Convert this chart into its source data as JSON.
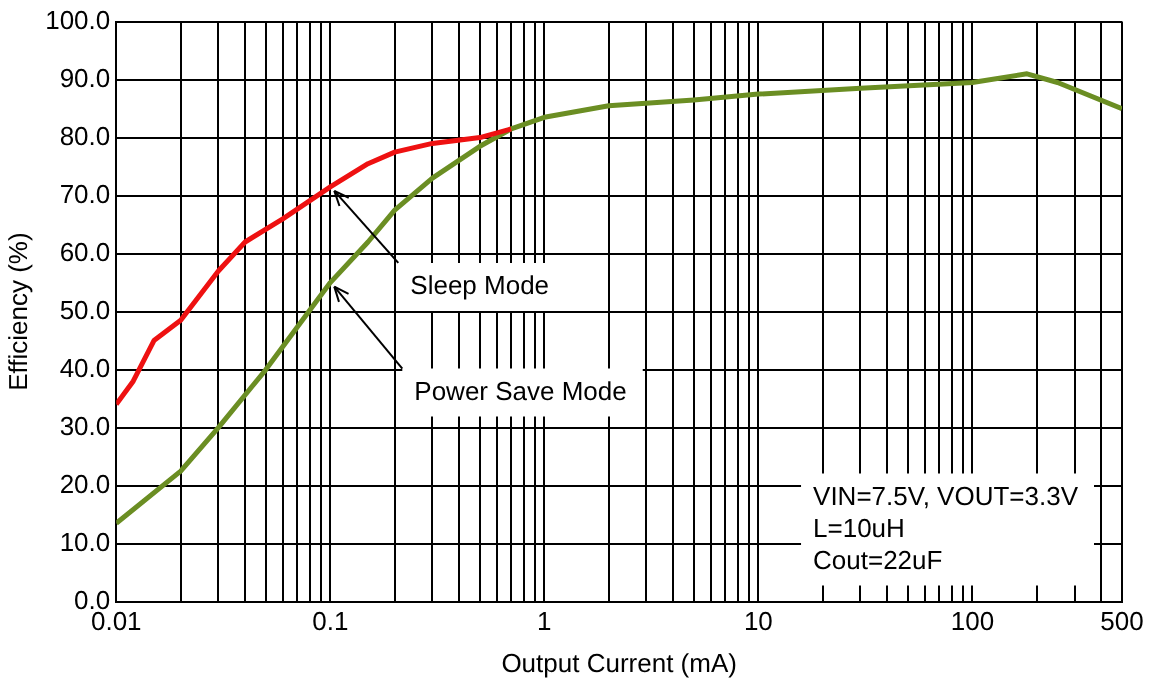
{
  "chart_data": {
    "type": "line",
    "xlabel": "Output Current (mA)",
    "ylabel": "Efficiency (%)",
    "log": "x",
    "grid": true,
    "legend": false,
    "marker": "none",
    "line_style": "solid",
    "xlim": [
      0.01,
      500
    ],
    "ylim": [
      0,
      100
    ],
    "xticks": [
      0.01,
      {
        "value": 0.02,
        "label": null
      },
      {
        "value": 0.03,
        "label": null
      },
      {
        "value": 0.04,
        "label": null
      },
      {
        "value": 0.05,
        "label": null
      },
      {
        "value": 0.06,
        "label": null
      },
      {
        "value": 0.07,
        "label": null
      },
      {
        "value": 0.08,
        "label": null
      },
      {
        "value": 0.09,
        "label": null
      },
      0.1,
      {
        "value": 0.2,
        "label": null
      },
      {
        "value": 0.3,
        "label": null
      },
      {
        "value": 0.4,
        "label": null
      },
      {
        "value": 0.5,
        "label": null
      },
      {
        "value": 0.6,
        "label": null
      },
      {
        "value": 0.7,
        "label": null
      },
      {
        "value": 0.8,
        "label": null
      },
      {
        "value": 0.9,
        "label": null
      },
      1,
      {
        "value": 2,
        "label": null
      },
      {
        "value": 3,
        "label": null
      },
      {
        "value": 4,
        "label": null
      },
      {
        "value": 5,
        "label": null
      },
      {
        "value": 6,
        "label": null
      },
      {
        "value": 7,
        "label": null
      },
      {
        "value": 8,
        "label": null
      },
      {
        "value": 9,
        "label": null
      },
      10,
      {
        "value": 20,
        "label": null
      },
      {
        "value": 30,
        "label": null
      },
      {
        "value": 40,
        "label": null
      },
      {
        "value": 50,
        "label": null
      },
      {
        "value": 60,
        "label": null
      },
      {
        "value": 70,
        "label": null
      },
      {
        "value": 80,
        "label": null
      },
      {
        "value": 90,
        "label": null
      },
      100,
      {
        "value": 200,
        "label": null
      },
      {
        "value": 300,
        "label": null
      },
      {
        "value": 400,
        "label": null
      },
      500
    ],
    "yticks": [
      {
        "value": 0,
        "label": "0.0"
      },
      {
        "value": 10,
        "label": "10.0"
      },
      {
        "value": 20,
        "label": "20.0"
      },
      {
        "value": 30,
        "label": "30.0"
      },
      {
        "value": 40,
        "label": "40.0"
      },
      {
        "value": 50,
        "label": "50.0"
      },
      {
        "value": 60,
        "label": "60.0"
      },
      {
        "value": 70,
        "label": "70.0"
      },
      {
        "value": 80,
        "label": "80.0"
      },
      {
        "value": 90,
        "label": "90.0"
      },
      {
        "value": 100,
        "label": "100.0"
      }
    ],
    "series": [
      {
        "color": "#ee1111",
        "x": [
          0.01,
          0.012,
          0.015,
          0.02,
          0.03,
          0.04,
          0.06,
          0.1,
          0.15,
          0.2,
          0.3,
          0.5,
          0.7
        ],
        "values": [
          34,
          38,
          45,
          48.5,
          57,
          62,
          66,
          71.5,
          75.5,
          77.5,
          79,
          80,
          81.5
        ]
      },
      {
        "color": "#6b8e23",
        "x": [
          0.01,
          0.02,
          0.03,
          0.05,
          0.1,
          0.15,
          0.2,
          0.3,
          0.5,
          0.7,
          1,
          2,
          5,
          10,
          30,
          100,
          180,
          250,
          500
        ],
        "values": [
          13.5,
          22.5,
          30,
          40,
          55,
          62,
          67.5,
          73,
          78.5,
          81.5,
          83.5,
          85.5,
          86.5,
          87.5,
          88.5,
          89.5,
          91,
          89.5,
          85
        ]
      }
    ],
    "annotations": [
      {
        "text": "Sleep Mode",
        "x": 0.1,
        "y": 71.5
      },
      {
        "text": "Power Save Mode",
        "x": 0.1,
        "y": 55
      },
      "VIN=7.5V, VOUT=3.3V\nL=10uH\nCout=22uF"
    ]
  }
}
